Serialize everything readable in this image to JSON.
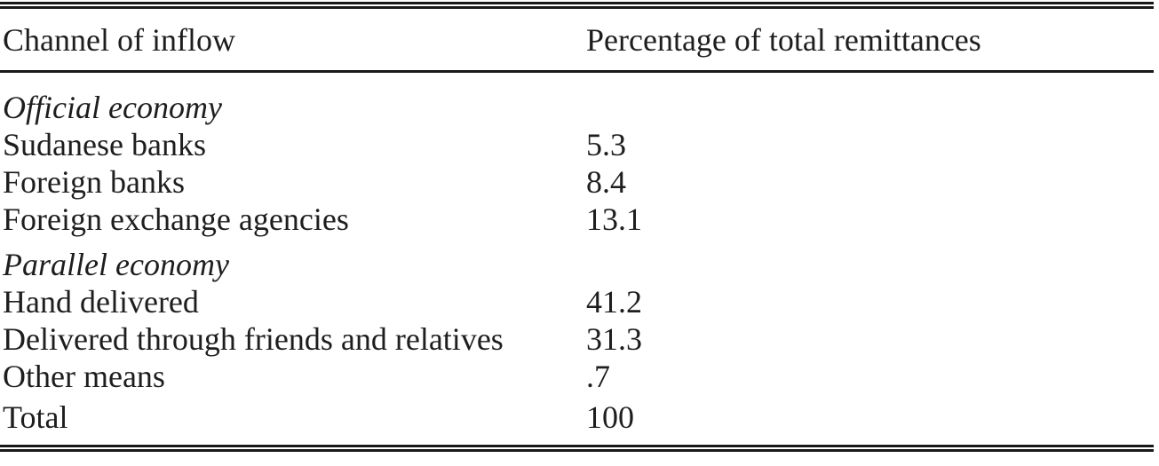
{
  "table": {
    "header": {
      "col1": "Channel of inflow",
      "col2": "Percentage of total remittances"
    },
    "rows": [
      {
        "label": "Official economy",
        "value": "",
        "type": "section"
      },
      {
        "label": "Sudanese banks",
        "value": "5.3",
        "type": "data"
      },
      {
        "label": "Foreign banks",
        "value": "8.4",
        "type": "data"
      },
      {
        "label": "Foreign exchange agencies",
        "value": "13.1",
        "type": "data"
      },
      {
        "label": "Parallel economy",
        "value": "",
        "type": "section"
      },
      {
        "label": "Hand delivered",
        "value": "41.2",
        "type": "data"
      },
      {
        "label": "Delivered through friends and relatives",
        "value": "31.3",
        "type": "data"
      },
      {
        "label": "Other means",
        "value": ".7",
        "type": "data"
      },
      {
        "label": "Total",
        "value": "100",
        "type": "total"
      }
    ],
    "colors": {
      "text": "#1e1e1e",
      "rule": "#181818",
      "background": "#ffffff"
    }
  }
}
